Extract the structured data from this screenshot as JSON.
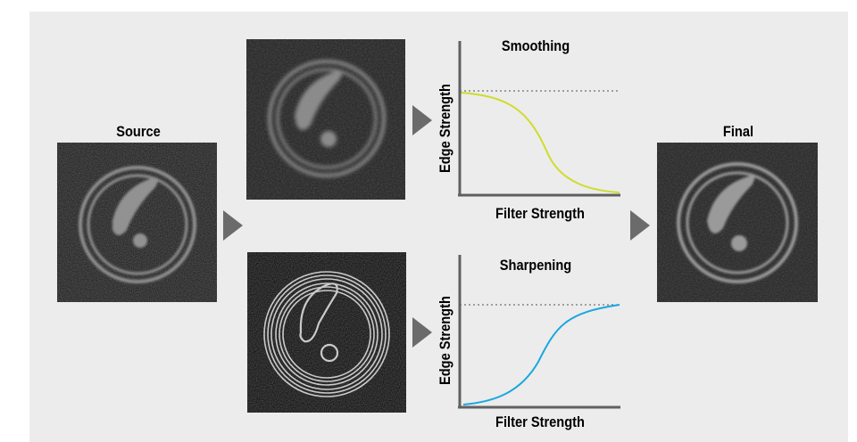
{
  "labels": {
    "source": "Source",
    "final": "Final"
  },
  "smoothing_chart": {
    "title": "Smoothing",
    "xlabel": "Filter Strength",
    "ylabel": "Edge Strength",
    "line_color": "#cfdc2a"
  },
  "sharpening_chart": {
    "title": "Sharpening",
    "xlabel": "Filter Strength",
    "ylabel": "Edge Strength",
    "line_color": "#1aa7e0"
  },
  "colors": {
    "panel": "#ececec",
    "arrow": "#6b6b6b",
    "axis": "#606060",
    "reference": "#707070"
  },
  "images": [
    {
      "id": "source",
      "description": "noisy",
      "noise": 0.9
    },
    {
      "id": "smoothed",
      "description": "smoothed",
      "noise": 0.45
    },
    {
      "id": "sharpened",
      "description": "sharpened",
      "noise": 0.7
    },
    {
      "id": "final",
      "description": "final",
      "noise": 0.5
    }
  ]
}
